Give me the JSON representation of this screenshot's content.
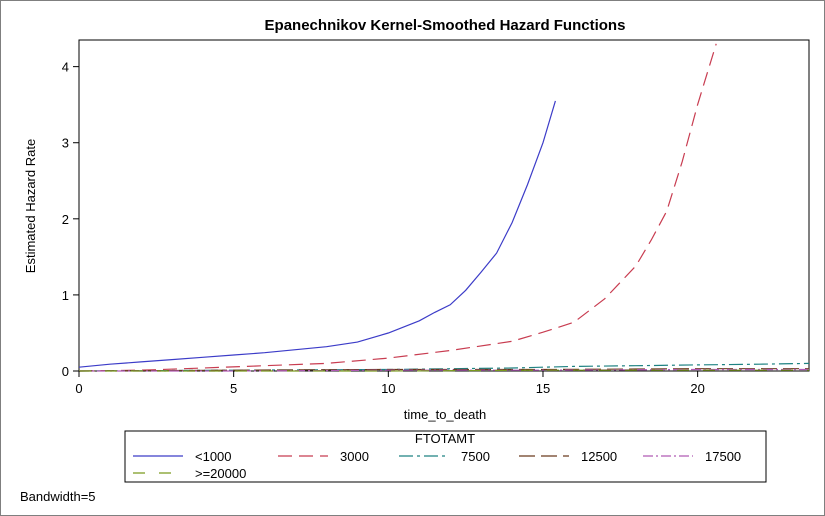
{
  "chart_data": {
    "type": "line",
    "title": "Epanechnikov Kernel-Smoothed Hazard Functions",
    "xlabel": "time_to_death",
    "ylabel": "Estimated Hazard Rate",
    "xlim": [
      0,
      23.6
    ],
    "ylim": [
      0,
      4.35
    ],
    "xticks": [
      0,
      5,
      10,
      15,
      20
    ],
    "yticks": [
      0,
      1,
      2,
      3,
      4
    ],
    "grid": false,
    "legend_title": "FTOTAMT",
    "legend_position": "bottom",
    "footnote": "Bandwidth=5",
    "series": [
      {
        "name": "<1000",
        "color": "#3c3cc8",
        "dash": "none",
        "x": [
          0,
          1,
          2,
          3,
          4,
          5,
          6,
          7,
          8,
          9,
          10,
          11,
          11.5,
          12,
          12.5,
          13,
          13.5,
          14,
          14.5,
          15,
          15.4
        ],
        "y": [
          0.05,
          0.09,
          0.12,
          0.15,
          0.18,
          0.21,
          0.24,
          0.28,
          0.32,
          0.38,
          0.5,
          0.66,
          0.77,
          0.87,
          1.06,
          1.3,
          1.55,
          1.95,
          2.45,
          3.0,
          3.55
        ]
      },
      {
        "name": "3000",
        "color": "#c83c50",
        "dash": "14,7",
        "x": [
          0,
          2,
          4,
          6,
          8,
          10,
          12,
          14,
          15,
          16,
          17,
          18,
          18.5,
          19,
          19.5,
          20,
          20.6
        ],
        "y": [
          0,
          0.01,
          0.04,
          0.07,
          0.1,
          0.17,
          0.27,
          0.39,
          0.51,
          0.64,
          0.95,
          1.38,
          1.72,
          2.1,
          2.75,
          3.5,
          4.3
        ]
      },
      {
        "name": "7500",
        "color": "#1e8282",
        "dash": "14,4,3,4",
        "x": [
          0,
          5,
          10,
          14,
          16,
          18,
          20,
          22,
          23.6
        ],
        "y": [
          0,
          0.01,
          0.02,
          0.04,
          0.06,
          0.07,
          0.08,
          0.09,
          0.1
        ]
      },
      {
        "name": "12500",
        "color": "#6b3a1e",
        "dash": "16,6",
        "x": [
          0,
          5,
          10,
          15,
          20,
          23.6
        ],
        "y": [
          0,
          0.01,
          0.02,
          0.02,
          0.03,
          0.03
        ]
      },
      {
        "name": "17500",
        "color": "#b05ab4",
        "dash": "10,3,2,3",
        "x": [
          0,
          5,
          10,
          15,
          20,
          23.6
        ],
        "y": [
          0,
          0,
          0.01,
          0.01,
          0.02,
          0.02
        ]
      },
      {
        "name": ">=20000",
        "color": "#7a9a1e",
        "dash": "12,14",
        "x": [
          0,
          5,
          10,
          15,
          20,
          23.6
        ],
        "y": [
          0,
          0,
          0,
          0.01,
          0.01,
          0.01
        ]
      }
    ]
  }
}
